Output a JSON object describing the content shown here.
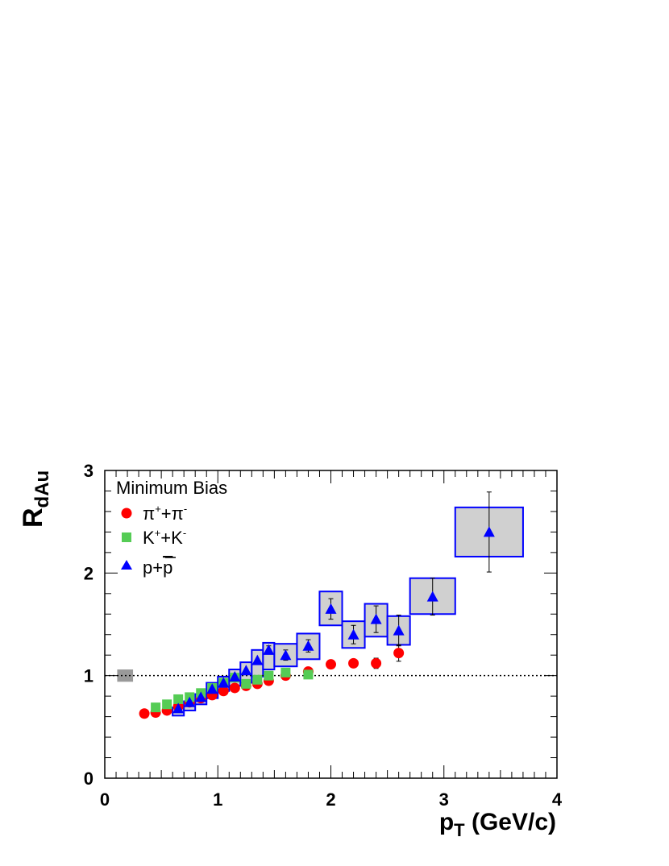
{
  "chart_data": {
    "type": "scatter",
    "title": "",
    "xlabel": "p",
    "xlabel_sub": "T",
    "xlabel_unit": "(GeV/c)",
    "ylabel": "R",
    "ylabel_sub": "dAu",
    "xlim": [
      0,
      4
    ],
    "ylim": [
      0,
      3
    ],
    "x_ticks": [
      "0",
      "1",
      "2",
      "3",
      "4"
    ],
    "y_ticks": [
      "0",
      "1",
      "2",
      "3"
    ],
    "legend_title": "Minimum Bias",
    "legend_placement": "top-left",
    "reference_line": 1.0,
    "normalization_box": {
      "x": [
        0.11,
        0.25
      ],
      "y": [
        0.94,
        1.06
      ],
      "color": "#999999"
    },
    "series": [
      {
        "name": "π⁺+π⁻",
        "label_main": "π",
        "label_sup1": "+",
        "label_mid": "+π",
        "label_sup2": "-",
        "marker": "circle",
        "color": "#ff0000",
        "x": [
          0.35,
          0.45,
          0.55,
          0.65,
          0.75,
          0.85,
          0.95,
          1.05,
          1.15,
          1.25,
          1.35,
          1.45,
          1.6,
          1.8,
          2.0,
          2.2,
          2.4,
          2.6
        ],
        "y": [
          0.63,
          0.64,
          0.66,
          0.7,
          0.74,
          0.78,
          0.81,
          0.85,
          0.88,
          0.9,
          0.92,
          0.95,
          1.0,
          1.04,
          1.11,
          1.12,
          1.12,
          1.22
        ],
        "yerr": [
          0,
          0,
          0,
          0,
          0,
          0,
          0,
          0,
          0,
          0,
          0,
          0,
          0,
          0,
          0,
          0,
          0.05,
          0.08
        ]
      },
      {
        "name": "K⁺+K⁻",
        "label_main": "K",
        "label_sup1": "+",
        "label_mid": "+K",
        "label_sup2": "-",
        "marker": "square",
        "color": "#55cc55",
        "x": [
          0.45,
          0.55,
          0.65,
          0.75,
          0.85,
          0.95,
          1.05,
          1.15,
          1.25,
          1.35,
          1.45,
          1.6,
          1.8
        ],
        "y": [
          0.69,
          0.72,
          0.77,
          0.79,
          0.83,
          0.88,
          0.93,
          0.98,
          0.92,
          0.96,
          1.0,
          1.03,
          1.01
        ]
      },
      {
        "name": "p+p̄",
        "label_main": "p+",
        "label_bar": "p",
        "marker": "triangle",
        "color": "#0000ff",
        "x": [
          0.65,
          0.75,
          0.85,
          0.95,
          1.05,
          1.15,
          1.25,
          1.35,
          1.45,
          1.6,
          1.8,
          2.0,
          2.2,
          2.4,
          2.6,
          2.9,
          3.4
        ],
        "y": [
          0.68,
          0.74,
          0.79,
          0.87,
          0.93,
          0.99,
          1.05,
          1.15,
          1.25,
          1.2,
          1.29,
          1.65,
          1.4,
          1.55,
          1.44,
          1.77,
          2.4
        ],
        "yerr": [
          0,
          0,
          0,
          0,
          0,
          0,
          0,
          0,
          0.04,
          0.05,
          0.06,
          0.1,
          0.09,
          0.13,
          0.15,
          0.18,
          0.39
        ],
        "sys_boxes": [
          [
            0.6,
            0.7,
            0.61,
            0.69
          ],
          [
            0.7,
            0.8,
            0.66,
            0.75
          ],
          [
            0.8,
            0.9,
            0.72,
            0.82
          ],
          [
            0.9,
            1.0,
            0.78,
            0.93
          ],
          [
            1.0,
            1.1,
            0.85,
            0.99
          ],
          [
            1.1,
            1.2,
            0.9,
            1.06
          ],
          [
            1.2,
            1.3,
            0.93,
            1.13
          ],
          [
            1.3,
            1.4,
            0.99,
            1.25
          ],
          [
            1.4,
            1.5,
            1.06,
            1.32
          ],
          [
            1.5,
            1.7,
            1.09,
            1.31
          ],
          [
            1.7,
            1.9,
            1.16,
            1.41
          ],
          [
            1.9,
            2.1,
            1.49,
            1.82
          ],
          [
            2.1,
            2.3,
            1.27,
            1.53
          ],
          [
            2.3,
            2.5,
            1.38,
            1.7
          ],
          [
            2.5,
            2.7,
            1.3,
            1.58
          ],
          [
            2.7,
            3.1,
            1.6,
            1.95
          ],
          [
            3.1,
            3.7,
            2.16,
            2.64
          ]
        ]
      }
    ]
  }
}
